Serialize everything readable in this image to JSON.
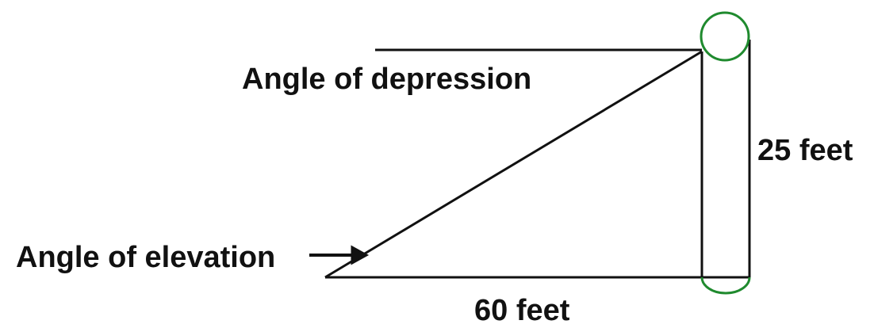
{
  "labels": {
    "depression": "Angle of depression",
    "elevation": "Angle of elevation",
    "height": "25 feet",
    "distance": "60 feet"
  }
}
